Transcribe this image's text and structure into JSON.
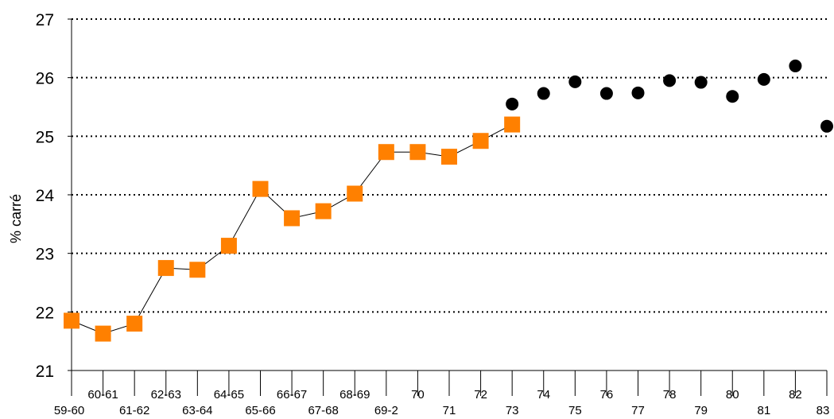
{
  "chart_data": {
    "type": "line",
    "title": "",
    "xlabel": "",
    "ylabel": "% carré",
    "ylim": [
      21,
      27
    ],
    "yticks": [
      21,
      22,
      23,
      24,
      25,
      26,
      27
    ],
    "grid": "horizontal dotted",
    "categories": [
      "59-60",
      "60-61",
      "61-62",
      "62-63",
      "63-64",
      "64-65",
      "65-66",
      "66-67",
      "67-68",
      "68-69",
      "69-2",
      "70",
      "71",
      "72",
      "73",
      "74",
      "75",
      "76",
      "77",
      "78",
      "79",
      "80",
      "81",
      "82",
      "83"
    ],
    "series": [
      {
        "marker": "square",
        "color": "#ff8000",
        "connected": true,
        "values": [
          21.85,
          21.63,
          21.8,
          22.75,
          22.72,
          23.13,
          24.1,
          23.6,
          23.72,
          24.02,
          24.73,
          24.73,
          24.65,
          24.92,
          25.2,
          null,
          null,
          null,
          null,
          null,
          null,
          null,
          null,
          null,
          null
        ]
      },
      {
        "marker": "circle",
        "color": "#000000",
        "connected": false,
        "values": [
          null,
          null,
          null,
          null,
          null,
          null,
          null,
          null,
          null,
          null,
          null,
          null,
          null,
          null,
          25.55,
          25.73,
          25.93,
          25.73,
          25.74,
          25.95,
          25.92,
          25.68,
          25.97,
          26.2,
          25.17
        ]
      }
    ]
  }
}
